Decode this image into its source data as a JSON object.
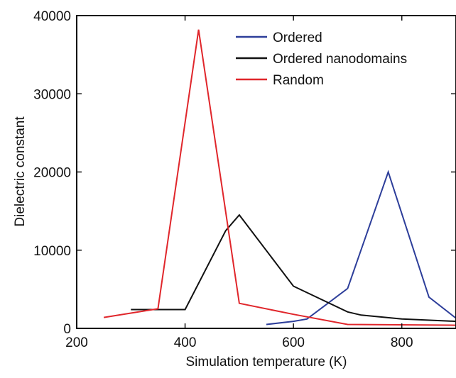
{
  "chart_data": {
    "type": "line",
    "title": "",
    "xlabel": "Simulation temperature (K)",
    "ylabel": "Dielectric constant",
    "xlim": [
      200,
      900
    ],
    "ylim": [
      0,
      40000
    ],
    "xticks": [
      200,
      400,
      600,
      800
    ],
    "yticks": [
      0,
      10000,
      20000,
      30000,
      40000
    ],
    "grid": false,
    "legend": "top-right",
    "series": [
      {
        "name": "Ordered",
        "color": "#2d3e9a",
        "x": [
          550,
          600,
          625,
          650,
          700,
          775,
          850,
          900
        ],
        "y": [
          500,
          900,
          1200,
          2500,
          5100,
          20000,
          4000,
          1300
        ]
      },
      {
        "name": "Ordered nanodomains",
        "color": "#111111",
        "x": [
          300,
          350,
          400,
          475,
          500,
          600,
          700,
          725,
          800,
          900
        ],
        "y": [
          2400,
          2400,
          2400,
          12500,
          14500,
          5400,
          2100,
          1700,
          1200,
          900
        ]
      },
      {
        "name": "Random",
        "color": "#e0262b",
        "x": [
          250,
          350,
          425,
          500,
          600,
          700,
          900
        ],
        "y": [
          1400,
          2500,
          38200,
          3200,
          1800,
          500,
          400
        ]
      }
    ]
  }
}
